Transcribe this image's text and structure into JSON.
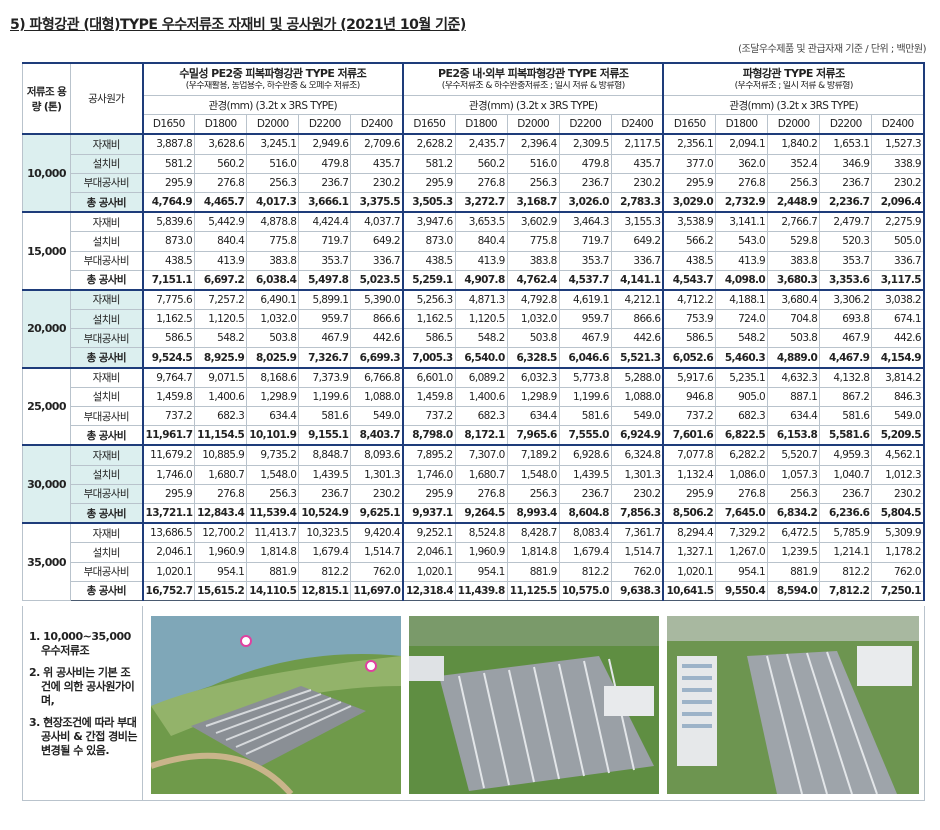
{
  "title": "5) 파형강관 (대형)TYPE 우수저류조 자재비 및 공사원가 (2021년 10월 기준)",
  "unit_note": "(조달우수제품 및 관급자재 기준 / 단위 ; 백만원)",
  "table": {
    "capacity_header": "저류조 용량 (톤)",
    "item_header": "공사원가",
    "groups": [
      {
        "title": "수밀성 PE2중 피복파형강관 TYPE 저류조",
        "subtitle": "(우수재활용, 농업용수, 하수완충 & 오페수 저류조)",
        "pipe_label": "관경(mm) (3.2t x 3RS TYPE)",
        "diameters": [
          "D1650",
          "D1800",
          "D2000",
          "D2200",
          "D2400"
        ]
      },
      {
        "title": "PE2중 내·외부 피복파형강관 TYPE 저류조",
        "subtitle": "(우수저류조 & 하수완충저류조 ; 일시 저류 & 방류형)",
        "pipe_label": "관경(mm) (3.2t x 3RS TYPE)",
        "diameters": [
          "D1650",
          "D1800",
          "D2000",
          "D2200",
          "D2400"
        ]
      },
      {
        "title": "파형강관 TYPE 저류조",
        "subtitle": "(우수저류조 ; 일시 저류 & 방류형)",
        "pipe_label": "관경(mm) (3.2t x 3RS TYPE)",
        "diameters": [
          "D1650",
          "D1800",
          "D2000",
          "D2200",
          "D2400"
        ]
      }
    ],
    "rows": [
      {
        "capacity": "10,000",
        "items": [
          {
            "name": "자재비",
            "values": [
              "3,887.8",
              "3,628.6",
              "3,245.1",
              "2,949.6",
              "2,709.6",
              "2,628.2",
              "2,435.7",
              "2,396.4",
              "2,309.5",
              "2,117.5",
              "2,356.1",
              "2,094.1",
              "1,840.2",
              "1,653.1",
              "1,527.3"
            ]
          },
          {
            "name": "설치비",
            "values": [
              "581.2",
              "560.2",
              "516.0",
              "479.8",
              "435.7",
              "581.2",
              "560.2",
              "516.0",
              "479.8",
              "435.7",
              "377.0",
              "362.0",
              "352.4",
              "346.9",
              "338.9"
            ]
          },
          {
            "name": "부대공사비",
            "values": [
              "295.9",
              "276.8",
              "256.3",
              "236.7",
              "230.2",
              "295.9",
              "276.8",
              "256.3",
              "236.7",
              "230.2",
              "295.9",
              "276.8",
              "256.3",
              "236.7",
              "230.2"
            ]
          },
          {
            "name": "총 공사비",
            "values": [
              "4,764.9",
              "4,465.7",
              "4,017.3",
              "3,666.1",
              "3,375.5",
              "3,505.3",
              "3,272.7",
              "3,168.7",
              "3,026.0",
              "2,783.3",
              "3,029.0",
              "2,732.9",
              "2,448.9",
              "2,236.7",
              "2,096.4"
            ]
          }
        ]
      },
      {
        "capacity": "15,000",
        "items": [
          {
            "name": "자재비",
            "values": [
              "5,839.6",
              "5,442.9",
              "4,878.8",
              "4,424.4",
              "4,037.7",
              "3,947.6",
              "3,653.5",
              "3,602.9",
              "3,464.3",
              "3,155.3",
              "3,538.9",
              "3,141.1",
              "2,766.7",
              "2,479.7",
              "2,275.9"
            ]
          },
          {
            "name": "설치비",
            "values": [
              "873.0",
              "840.4",
              "775.8",
              "719.7",
              "649.2",
              "873.0",
              "840.4",
              "775.8",
              "719.7",
              "649.2",
              "566.2",
              "543.0",
              "529.8",
              "520.3",
              "505.0"
            ]
          },
          {
            "name": "부대공사비",
            "values": [
              "438.5",
              "413.9",
              "383.8",
              "353.7",
              "336.7",
              "438.5",
              "413.9",
              "383.8",
              "353.7",
              "336.7",
              "438.5",
              "413.9",
              "383.8",
              "353.7",
              "336.7"
            ]
          },
          {
            "name": "총 공사비",
            "values": [
              "7,151.1",
              "6,697.2",
              "6,038.4",
              "5,497.8",
              "5,023.5",
              "5,259.1",
              "4,907.8",
              "4,762.4",
              "4,537.7",
              "4,141.1",
              "4,543.7",
              "4,098.0",
              "3,680.3",
              "3,353.6",
              "3,117.5"
            ]
          }
        ]
      },
      {
        "capacity": "20,000",
        "items": [
          {
            "name": "자재비",
            "values": [
              "7,775.6",
              "7,257.2",
              "6,490.1",
              "5,899.1",
              "5,390.0",
              "5,256.3",
              "4,871.3",
              "4,792.8",
              "4,619.1",
              "4,212.1",
              "4,712.2",
              "4,188.1",
              "3,680.4",
              "3,306.2",
              "3,038.2"
            ]
          },
          {
            "name": "설치비",
            "values": [
              "1,162.5",
              "1,120.5",
              "1,032.0",
              "959.7",
              "866.6",
              "1,162.5",
              "1,120.5",
              "1,032.0",
              "959.7",
              "866.6",
              "753.9",
              "724.0",
              "704.8",
              "693.8",
              "674.1"
            ]
          },
          {
            "name": "부대공사비",
            "values": [
              "586.5",
              "548.2",
              "503.8",
              "467.9",
              "442.6",
              "586.5",
              "548.2",
              "503.8",
              "467.9",
              "442.6",
              "586.5",
              "548.2",
              "503.8",
              "467.9",
              "442.6"
            ]
          },
          {
            "name": "총 공사비",
            "values": [
              "9,524.5",
              "8,925.9",
              "8,025.9",
              "7,326.7",
              "6,699.3",
              "7,005.3",
              "6,540.0",
              "6,328.5",
              "6,046.6",
              "5,521.3",
              "6,052.6",
              "5,460.3",
              "4,889.0",
              "4,467.9",
              "4,154.9"
            ]
          }
        ]
      },
      {
        "capacity": "25,000",
        "items": [
          {
            "name": "자재비",
            "values": [
              "9,764.7",
              "9,071.5",
              "8,168.6",
              "7,373.9",
              "6,766.8",
              "6,601.0",
              "6,089.2",
              "6,032.3",
              "5,773.8",
              "5,288.0",
              "5,917.6",
              "5,235.1",
              "4,632.3",
              "4,132.8",
              "3,814.2"
            ]
          },
          {
            "name": "설치비",
            "values": [
              "1,459.8",
              "1,400.6",
              "1,298.9",
              "1,199.6",
              "1,088.0",
              "1,459.8",
              "1,400.6",
              "1,298.9",
              "1,199.6",
              "1,088.0",
              "946.8",
              "905.0",
              "887.1",
              "867.2",
              "846.3"
            ]
          },
          {
            "name": "부대공사비",
            "values": [
              "737.2",
              "682.3",
              "634.4",
              "581.6",
              "549.0",
              "737.2",
              "682.3",
              "634.4",
              "581.6",
              "549.0",
              "737.2",
              "682.3",
              "634.4",
              "581.6",
              "549.0"
            ]
          },
          {
            "name": "총 공사비",
            "values": [
              "11,961.7",
              "11,154.5",
              "10,101.9",
              "9,155.1",
              "8,403.7",
              "8,798.0",
              "8,172.1",
              "7,965.6",
              "7,555.0",
              "6,924.9",
              "7,601.6",
              "6,822.5",
              "6,153.8",
              "5,581.6",
              "5,209.5"
            ]
          }
        ]
      },
      {
        "capacity": "30,000",
        "items": [
          {
            "name": "자재비",
            "values": [
              "11,679.2",
              "10,885.9",
              "9,735.2",
              "8,848.7",
              "8,093.6",
              "7,895.2",
              "7,307.0",
              "7,189.2",
              "6,928.6",
              "6,324.8",
              "7,077.8",
              "6,282.2",
              "5,520.7",
              "4,959.3",
              "4,562.1"
            ]
          },
          {
            "name": "설치비",
            "values": [
              "1,746.0",
              "1,680.7",
              "1,548.0",
              "1,439.5",
              "1,301.3",
              "1,746.0",
              "1,680.7",
              "1,548.0",
              "1,439.5",
              "1,301.3",
              "1,132.4",
              "1,086.0",
              "1,057.3",
              "1,040.7",
              "1,012.3"
            ]
          },
          {
            "name": "부대공사비",
            "values": [
              "295.9",
              "276.8",
              "256.3",
              "236.7",
              "230.2",
              "295.9",
              "276.8",
              "256.3",
              "236.7",
              "230.2",
              "295.9",
              "276.8",
              "256.3",
              "236.7",
              "230.2"
            ]
          },
          {
            "name": "총 공사비",
            "values": [
              "13,721.1",
              "12,843.4",
              "11,539.4",
              "10,524.9",
              "9,625.1",
              "9,937.1",
              "9,264.5",
              "8,993.4",
              "8,604.8",
              "7,856.3",
              "8,506.2",
              "7,645.0",
              "6,834.2",
              "6,236.6",
              "5,804.5"
            ]
          }
        ]
      },
      {
        "capacity": "35,000",
        "items": [
          {
            "name": "자재비",
            "values": [
              "13,686.5",
              "12,700.2",
              "11,413.7",
              "10,323.5",
              "9,420.4",
              "9,252.1",
              "8,524.8",
              "8,428.7",
              "8,083.4",
              "7,361.7",
              "8,294.4",
              "7,329.2",
              "6,472.5",
              "5,785.9",
              "5,309.9"
            ]
          },
          {
            "name": "설치비",
            "values": [
              "2,046.1",
              "1,960.9",
              "1,814.8",
              "1,679.4",
              "1,514.7",
              "2,046.1",
              "1,960.9",
              "1,814.8",
              "1,679.4",
              "1,514.7",
              "1,327.1",
              "1,267.0",
              "1,239.5",
              "1,214.1",
              "1,178.2"
            ]
          },
          {
            "name": "부대공사비",
            "values": [
              "1,020.1",
              "954.1",
              "881.9",
              "812.2",
              "762.0",
              "1,020.1",
              "954.1",
              "881.9",
              "812.2",
              "762.0",
              "1,020.1",
              "954.1",
              "881.9",
              "812.2",
              "762.0"
            ]
          },
          {
            "name": "총 공사비",
            "values": [
              "16,752.7",
              "15,615.2",
              "14,110.5",
              "12,815.1",
              "11,697.0",
              "12,318.4",
              "11,439.8",
              "11,125.5",
              "10,575.0",
              "9,638.3",
              "10,641.5",
              "9,550.4",
              "8,594.0",
              "7,812.2",
              "7,250.1"
            ]
          }
        ]
      }
    ]
  },
  "notes": [
    "1. 10,000~35,000 우수저류조",
    "2. 위 공사비는 기본 조건에 의한 공사원가이며,",
    "3. 현장조건에 따라 부대공사비 & 간접 경비는 변경될 수 있음."
  ]
}
